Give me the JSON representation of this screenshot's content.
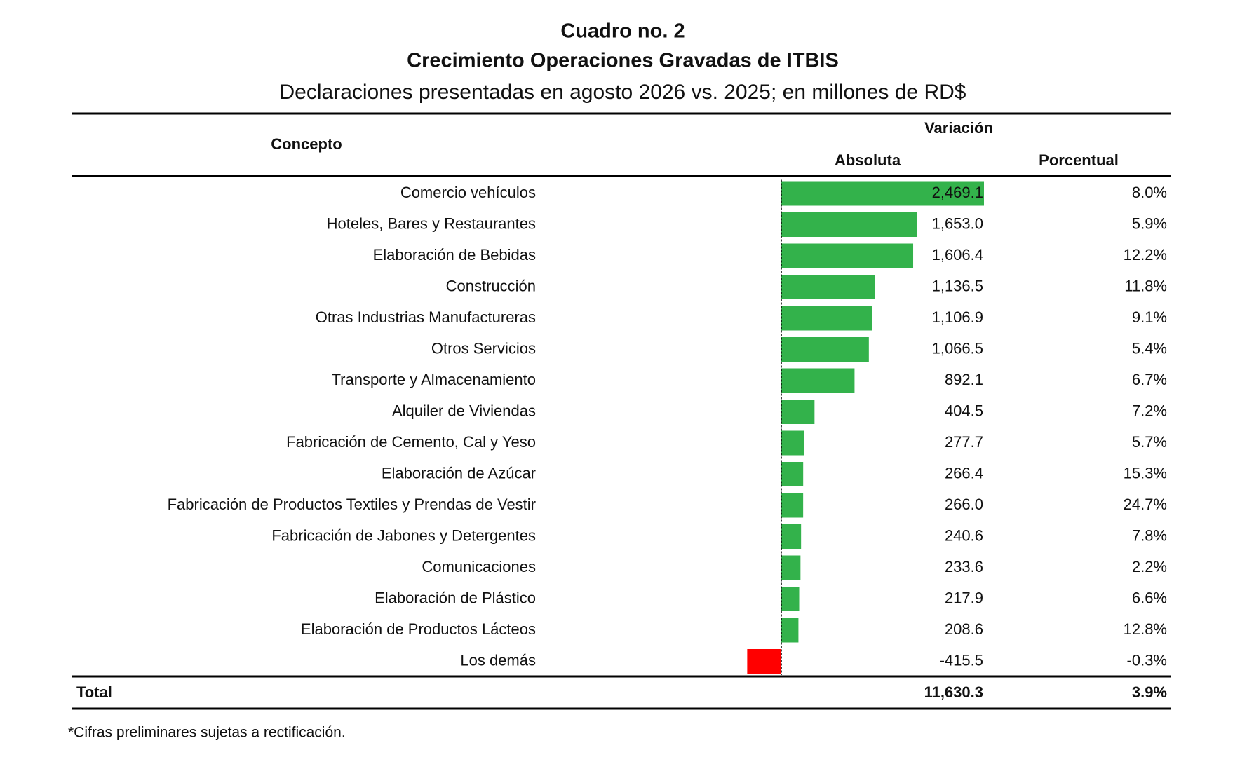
{
  "header": {
    "title": "Cuadro no. 2",
    "subtitle": "Crecimiento Operaciones Gravadas de ITBIS",
    "description": "Declaraciones presentadas en agosto 2026 vs. 2025; en millones de RD$"
  },
  "table": {
    "columns": {
      "concepto": "Concepto",
      "variacion": "Variación",
      "absoluta": "Absoluta",
      "porcentual": "Porcentual"
    },
    "bar_colors": {
      "positive": "#33b24b",
      "negative": "#ff0000"
    },
    "rows": [
      {
        "concepto": "Comercio vehículos",
        "absoluta": {
          "value": 2469.1,
          "label": "2,469.1"
        },
        "porcentual": "8.0%"
      },
      {
        "concepto": "Hoteles, Bares y Restaurantes",
        "absoluta": {
          "value": 1653.0,
          "label": "1,653.0"
        },
        "porcentual": "5.9%"
      },
      {
        "concepto": "Elaboración de Bebidas",
        "absoluta": {
          "value": 1606.4,
          "label": "1,606.4"
        },
        "porcentual": "12.2%"
      },
      {
        "concepto": "Construcción",
        "absoluta": {
          "value": 1136.5,
          "label": "1,136.5"
        },
        "porcentual": "11.8%"
      },
      {
        "concepto": "Otras Industrias Manufactureras",
        "absoluta": {
          "value": 1106.9,
          "label": "1,106.9"
        },
        "porcentual": "9.1%"
      },
      {
        "concepto": "Otros Servicios",
        "absoluta": {
          "value": 1066.5,
          "label": "1,066.5"
        },
        "porcentual": "5.4%"
      },
      {
        "concepto": "Transporte y Almacenamiento",
        "absoluta": {
          "value": 892.1,
          "label": "892.1"
        },
        "porcentual": "6.7%"
      },
      {
        "concepto": "Alquiler de Viviendas",
        "absoluta": {
          "value": 404.5,
          "label": "404.5"
        },
        "porcentual": "7.2%"
      },
      {
        "concepto": "Fabricación de Cemento, Cal y Yeso",
        "absoluta": {
          "value": 277.7,
          "label": "277.7"
        },
        "porcentual": "5.7%"
      },
      {
        "concepto": "Elaboración de Azúcar",
        "absoluta": {
          "value": 266.4,
          "label": "266.4"
        },
        "porcentual": "15.3%"
      },
      {
        "concepto": "Fabricación de Productos Textiles y Prendas de Vestir",
        "absoluta": {
          "value": 266.0,
          "label": "266.0"
        },
        "porcentual": "24.7%"
      },
      {
        "concepto": "Fabricación de Jabones y Detergentes",
        "absoluta": {
          "value": 240.6,
          "label": "240.6"
        },
        "porcentual": "7.8%"
      },
      {
        "concepto": "Comunicaciones",
        "absoluta": {
          "value": 233.6,
          "label": "233.6"
        },
        "porcentual": "2.2%"
      },
      {
        "concepto": "Elaboración de Plástico",
        "absoluta": {
          "value": 217.9,
          "label": "217.9"
        },
        "porcentual": "6.6%"
      },
      {
        "concepto": "Elaboración de Productos Lácteos",
        "absoluta": {
          "value": 208.6,
          "label": "208.6"
        },
        "porcentual": "12.8%"
      },
      {
        "concepto": "Los demás",
        "absoluta": {
          "value": -415.5,
          "label": "-415.5"
        },
        "porcentual": "-0.3%"
      }
    ],
    "total": {
      "concepto": "Total",
      "absoluta": {
        "value": 11630.3,
        "label": "11,630.3"
      },
      "porcentual": "3.9%"
    }
  },
  "footnote": "*Cifras preliminares sujetas a rectificación."
}
